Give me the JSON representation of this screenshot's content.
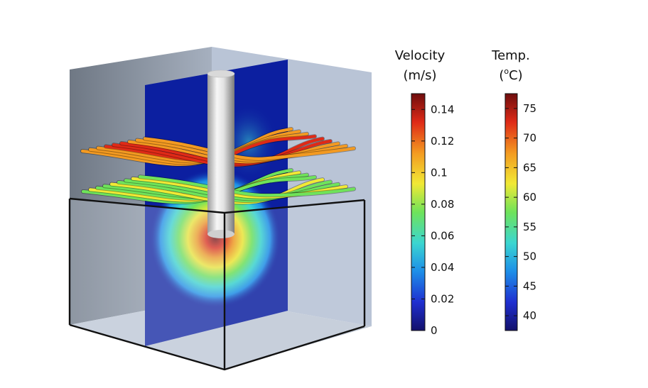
{
  "legends": {
    "velocity": {
      "title_line1": "Velocity",
      "title_line2": "(m/s)",
      "min": 0,
      "max": 0.15,
      "ticks": [
        "0",
        "0.02",
        "0.04",
        "0.06",
        "0.08",
        "0.1",
        "0.12",
        "0.14"
      ],
      "tick_values": [
        0,
        0.02,
        0.04,
        0.06,
        0.08,
        0.1,
        0.12,
        0.14
      ]
    },
    "temperature": {
      "title_line1": "Temp.",
      "title_line2_prefix": "(",
      "title_line2_sup": "o",
      "title_line2_suffix": "C)",
      "min": 37.5,
      "max": 77.5,
      "ticks": [
        "40",
        "45",
        "50",
        "55",
        "60",
        "65",
        "70",
        "75"
      ],
      "tick_values": [
        40,
        45,
        50,
        55,
        60,
        65,
        70,
        75
      ]
    }
  },
  "colors": {
    "colormap": [
      "#13116b",
      "#1f2fd0",
      "#1d8fe8",
      "#3bd6d0",
      "#6fe35a",
      "#f1e935",
      "#f39a21",
      "#df2a17",
      "#6e0d0d"
    ],
    "box_side": "#b7c2d4",
    "box_dark_side": "#7e8794",
    "slice_bg": "#0c1fa0",
    "edge": "#111111"
  }
}
